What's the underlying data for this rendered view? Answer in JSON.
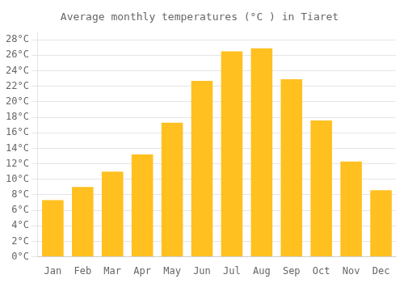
{
  "chart_data": {
    "type": "bar",
    "title": "Average monthly temperatures (°C ) in Tiaret",
    "categories": [
      "Jan",
      "Feb",
      "Mar",
      "Apr",
      "May",
      "Jun",
      "Jul",
      "Aug",
      "Sep",
      "Oct",
      "Nov",
      "Dec"
    ],
    "values": [
      7.3,
      9.0,
      11.0,
      13.2,
      17.3,
      22.7,
      26.5,
      26.9,
      22.9,
      17.6,
      12.3,
      8.6
    ],
    "color": "#FFC020",
    "ylim": [
      0,
      29
    ],
    "yticks": [
      {
        "value": 0,
        "label": "0°C"
      },
      {
        "value": 2,
        "label": "2°C"
      },
      {
        "value": 4,
        "label": "4°C"
      },
      {
        "value": 6,
        "label": "6°C"
      },
      {
        "value": 8,
        "label": "8°C"
      },
      {
        "value": 10,
        "label": "10°C"
      },
      {
        "value": 12,
        "label": "12°C"
      },
      {
        "value": 14,
        "label": "14°C"
      },
      {
        "value": 16,
        "label": "16°C"
      },
      {
        "value": 18,
        "label": "18°C"
      },
      {
        "value": 20,
        "label": "20°C"
      },
      {
        "value": 22,
        "label": "22°C"
      },
      {
        "value": 24,
        "label": "24°C"
      },
      {
        "value": 26,
        "label": "26°C"
      },
      {
        "value": 28,
        "label": "28°C"
      }
    ],
    "grid": true
  }
}
